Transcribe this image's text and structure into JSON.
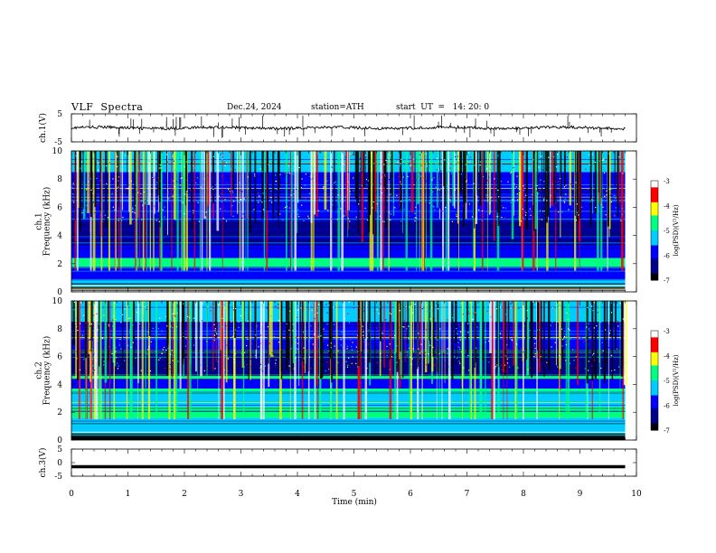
{
  "header": {
    "title": "VLF  Spectra",
    "date": "Dec.24, 2024",
    "station": "station=ATH",
    "start_ut": "start  UT  =   14: 20: 0"
  },
  "chart_data": [
    {
      "type": "line",
      "panel": "ch1-waveform",
      "ylabel": "ch.1(V)",
      "xlim": [
        0,
        10
      ],
      "ylim": [
        -5,
        5
      ],
      "yticks": [
        "5",
        "-5"
      ],
      "series": [
        {
          "x_end": 9.8,
          "baseline": 0,
          "noise_amplitude": 1,
          "spike_max": 4.5
        }
      ]
    },
    {
      "type": "heatmap",
      "panel": "ch1-spectrogram",
      "ylabel": "ch.1\nFrequency  (kHz)",
      "xlim": [
        0,
        10
      ],
      "ylim": [
        0,
        10
      ],
      "yticks": [
        "0",
        "2",
        "4",
        "6",
        "8",
        "10"
      ],
      "x_end": 9.8,
      "colorbar": {
        "label": "log(PSD)(V²/Hz)",
        "range": [
          -7,
          -3
        ],
        "ticks": [
          "-3",
          "-4",
          "-5",
          "-6",
          "-7"
        ]
      },
      "bands_khz": [
        {
          "from": 0.0,
          "to": 0.3,
          "log_psd": -7.0
        },
        {
          "from": 0.3,
          "to": 0.9,
          "log_psd": -5.3
        },
        {
          "from": 0.9,
          "to": 1.7,
          "log_psd": -6.1
        },
        {
          "from": 1.7,
          "to": 2.4,
          "log_psd": -5.0
        },
        {
          "from": 2.4,
          "to": 3.3,
          "log_psd": -6.0
        },
        {
          "from": 3.3,
          "to": 5.0,
          "log_psd": -6.6
        },
        {
          "from": 5.0,
          "to": 6.5,
          "log_psd": -6.1
        },
        {
          "from": 6.5,
          "to": 8.5,
          "log_psd": -5.6
        },
        {
          "from": 8.5,
          "to": 10.0,
          "log_psd": -5.2
        }
      ]
    },
    {
      "type": "heatmap",
      "panel": "ch2-spectrogram",
      "ylabel": "ch.2\nFrequency  (kHz)",
      "xlim": [
        0,
        10
      ],
      "ylim": [
        0,
        10
      ],
      "yticks": [
        "0",
        "2",
        "4",
        "6",
        "8",
        "10"
      ],
      "x_end": 9.8,
      "colorbar": {
        "label": "log(PSD)(V²/Hz)",
        "range": [
          -7,
          -3
        ],
        "ticks": [
          "-3",
          "-4",
          "-5",
          "-6",
          "-7"
        ]
      },
      "bands_khz": [
        {
          "from": 0.0,
          "to": 0.3,
          "log_psd": -7.0
        },
        {
          "from": 0.3,
          "to": 1.6,
          "log_psd": -5.4
        },
        {
          "from": 1.6,
          "to": 2.4,
          "log_psd": -4.9
        },
        {
          "from": 2.4,
          "to": 3.4,
          "log_psd": -5.3
        },
        {
          "from": 3.4,
          "to": 3.7,
          "log_psd": -4.6
        },
        {
          "from": 3.7,
          "to": 4.4,
          "log_psd": -5.7
        },
        {
          "from": 4.4,
          "to": 4.6,
          "log_psd": -4.8
        },
        {
          "from": 4.6,
          "to": 6.5,
          "log_psd": -6.2
        },
        {
          "from": 6.5,
          "to": 8.5,
          "log_psd": -5.6
        },
        {
          "from": 8.5,
          "to": 10.0,
          "log_psd": -5.2
        }
      ]
    },
    {
      "type": "line",
      "panel": "ch3-waveform",
      "ylabel": "ch.3(V)",
      "xlabel": "Time  (min)",
      "xlim": [
        0,
        10
      ],
      "ylim": [
        -5,
        5
      ],
      "yticks": [
        "5",
        "0",
        "-5"
      ],
      "xticks": [
        "0",
        "1",
        "2",
        "3",
        "4",
        "5",
        "6",
        "7",
        "8",
        "9",
        "10"
      ],
      "series": [
        {
          "x_end": 9.8,
          "level": -1.5
        }
      ]
    }
  ],
  "colormap": [
    "#000000",
    "#00008b",
    "#0000ff",
    "#00ccff",
    "#00ff80",
    "#ffff00",
    "#ff0000",
    "#ffffff"
  ]
}
